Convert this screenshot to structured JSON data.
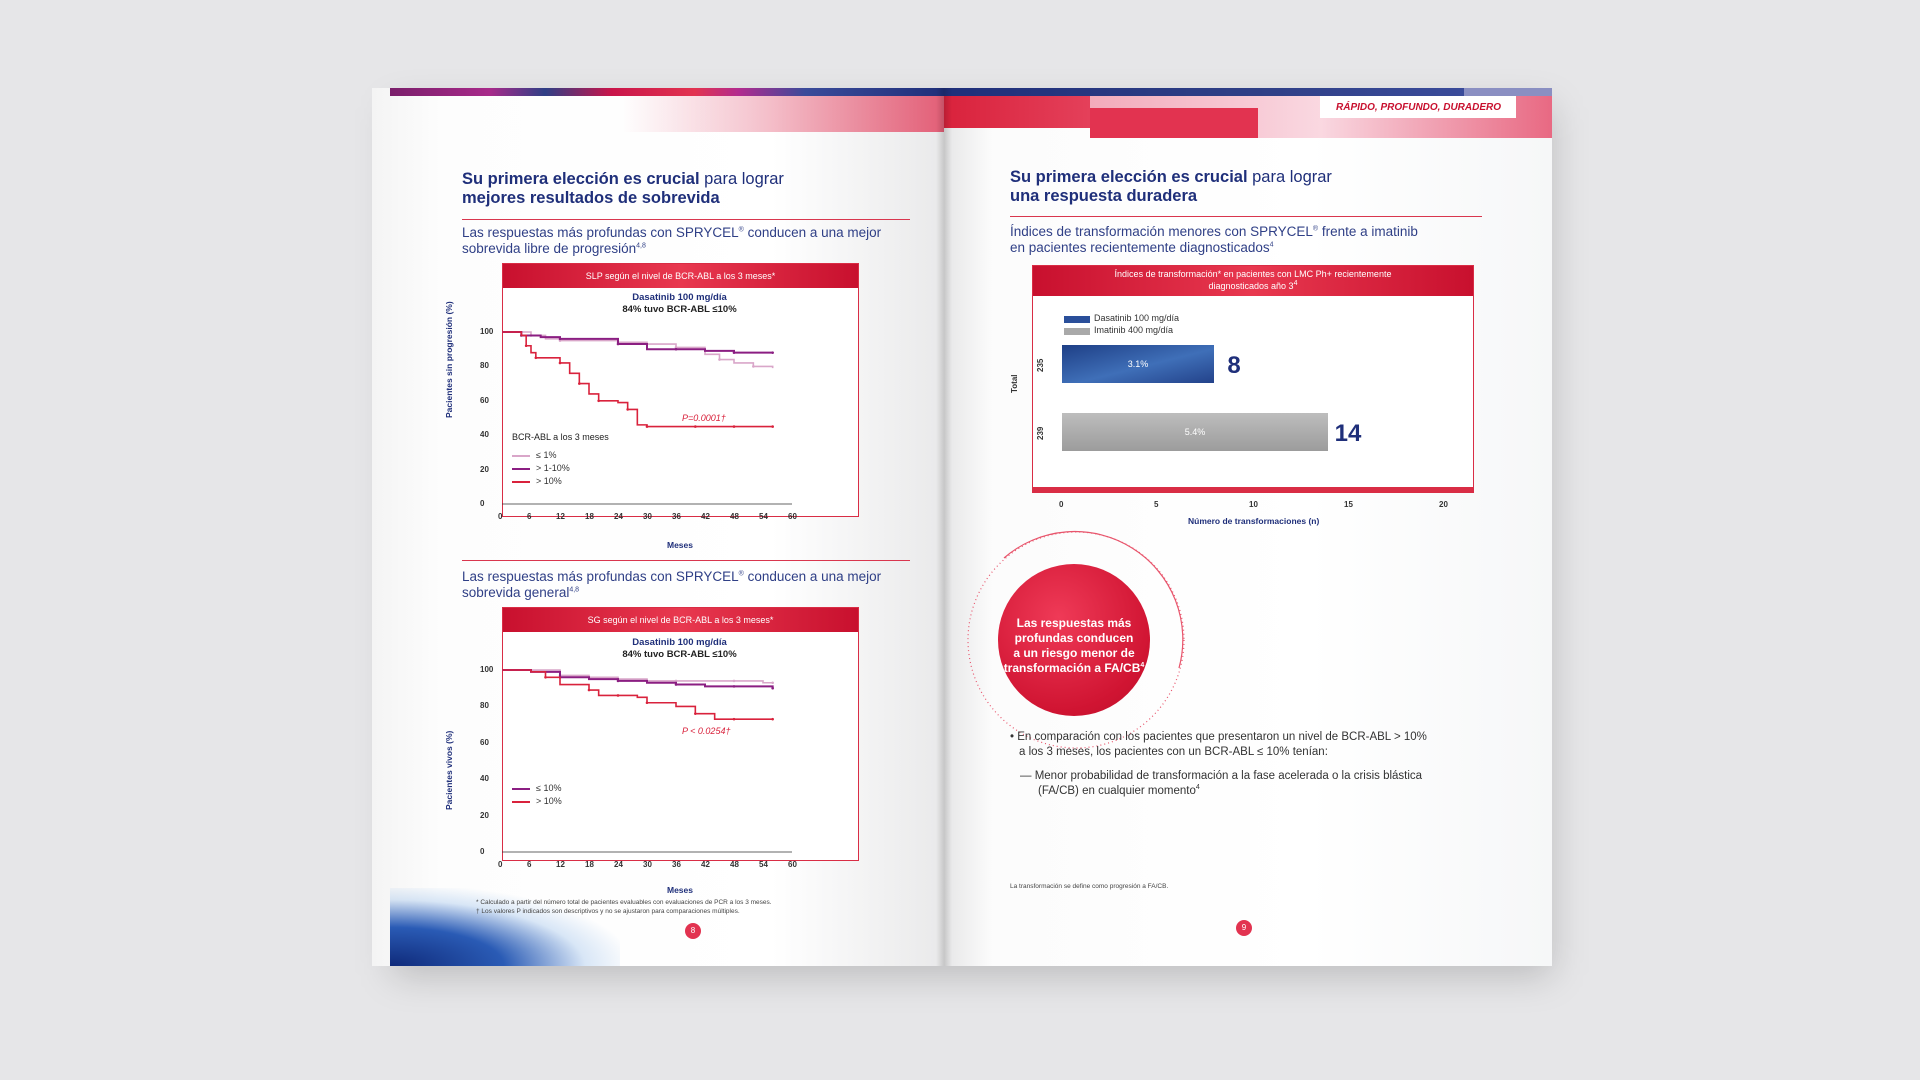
{
  "header_tag": "RÁPIDO, PROFUNDO, DURADERO",
  "left": {
    "title_bold": "Su primera elección es crucial",
    "title_light": " para lograr",
    "title_line2": "mejores resultados de sobrevida",
    "sub1_line1": "Las respuestas más profundas con SPRYCEL",
    "sub1_reg": "®",
    "sub1_tail": " conducen a una mejor",
    "sub1_line2": "sobrevida libre de progresión",
    "sub1_sup": "4,8",
    "sub2_line1": "Las respuestas más profundas con SPRYCEL",
    "sub2_reg": "®",
    "sub2_tail": " conducen a una mejor",
    "sub2_line2": "sobrevida general",
    "sub2_sup": "4,8",
    "footnote1": "* Calculado a partir del número total de pacientes evaluables con evaluaciones de PCR a los 3 meses.",
    "footnote2": "† Los valores P indicados son descriptivos y no se ajustaron para comparaciones múltiples.",
    "page_number": "8"
  },
  "right": {
    "title_bold": "Su primera elección es crucial",
    "title_light": " para lograr",
    "title_line2": "una respuesta duradera",
    "sub_line1": "Índices de transformación menores con SPRYCEL",
    "sub_reg": "®",
    "sub_tail": " frente a imatinib",
    "sub_line2": "en pacientes recientemente diagnosticados",
    "sub_sup": "4",
    "circle_text_1": "Las respuestas más",
    "circle_text_2": "profundas conducen",
    "circle_text_3": "a un riesgo menor de",
    "circle_text_4": "transformación a FA/CB",
    "circle_sup": "4",
    "bullet_1": "• En comparación con los pacientes que presentaron un nivel de BCR-ABL > 10%",
    "bullet_1b": "a los 3 meses, los pacientes con un BCR-ABL ≤ 10% tenían:",
    "dash_1": "— Menor probabilidad de transformación a la fase acelerada o la crisis blástica",
    "dash_1b": "(FA/CB) en cualquier momento",
    "dash_sup": "4",
    "footnote": "La transformación se define como progresión a FA/CB.",
    "page_number": "9"
  },
  "colors": {
    "brand_red": "#d92d45",
    "navy": "#1f2f7a",
    "purple": "#8b1e82",
    "pink_light": "#d9a6c9",
    "dasatinib_blue": "#2a4f9a",
    "imatinib_gray": "#a9a9a9"
  },
  "chart_data": [
    {
      "type": "line",
      "title": "SLP según el nivel de BCR-ABL a los 3 meses*",
      "annotation_1": "Dasatinib 100 mg/día",
      "annotation_2": "84% tuvo BCR-ABL ≤10%",
      "xlabel": "Meses",
      "ylabel": "Pacientes sin progresión (%)",
      "x_ticks": [
        "0",
        "6",
        "12",
        "18",
        "24",
        "30",
        "36",
        "42",
        "48",
        "54",
        "60"
      ],
      "y_ticks": [
        "0",
        "20",
        "40",
        "60",
        "80",
        "100"
      ],
      "xlim": [
        0,
        60
      ],
      "ylim": [
        0,
        100
      ],
      "legend_title": "BCR-ABL a los 3 meses",
      "p_value": "P=0.0001†",
      "series": [
        {
          "name": "≤ 1%",
          "color": "#d9a6c9",
          "x": [
            0,
            3,
            6,
            9,
            12,
            18,
            24,
            30,
            36,
            42,
            45,
            48,
            52,
            56
          ],
          "y": [
            100,
            100,
            98,
            96,
            95,
            95,
            94,
            93,
            91,
            87,
            84,
            82,
            80,
            79
          ]
        },
        {
          "name": "> 1-10%",
          "color": "#8b1e82",
          "x": [
            0,
            2,
            4,
            8,
            12,
            18,
            24,
            30,
            36,
            42,
            48,
            54,
            56
          ],
          "y": [
            100,
            100,
            98,
            97,
            96,
            96,
            93,
            90,
            90,
            89,
            88,
            88,
            88
          ]
        },
        {
          "name": "> 10%",
          "color": "#d9223c",
          "x": [
            0,
            4,
            5,
            6,
            7,
            9,
            12,
            14,
            16,
            18,
            20,
            24,
            26,
            28,
            30,
            36,
            40,
            44,
            48,
            52,
            56
          ],
          "y": [
            100,
            98,
            92,
            88,
            85,
            85,
            82,
            76,
            70,
            64,
            60,
            59,
            55,
            46,
            45,
            45,
            45,
            45,
            45,
            45,
            45
          ]
        }
      ]
    },
    {
      "type": "line",
      "title": "SG según el nivel de BCR-ABL a los 3 meses*",
      "annotation_1": "Dasatinib 100 mg/día",
      "annotation_2": "84% tuvo BCR-ABL ≤10%",
      "xlabel": "Meses",
      "ylabel": "Pacientes vivos (%)",
      "x_ticks": [
        "0",
        "6",
        "12",
        "18",
        "24",
        "30",
        "36",
        "42",
        "48",
        "54",
        "60"
      ],
      "y_ticks": [
        "0",
        "20",
        "40",
        "60",
        "80",
        "100"
      ],
      "xlim": [
        0,
        60
      ],
      "ylim": [
        0,
        100
      ],
      "p_value": "P < 0.0254†",
      "series": [
        {
          "name": "",
          "color": "#d9a6c9",
          "x": [
            0,
            6,
            12,
            18,
            24,
            30,
            36,
            42,
            48,
            54,
            56
          ],
          "y": [
            100,
            100,
            97,
            96,
            95,
            94,
            94,
            94,
            94,
            93,
            93
          ]
        },
        {
          "name": "≤ 10%",
          "color": "#8b1e82",
          "x": [
            0,
            6,
            12,
            18,
            24,
            30,
            36,
            42,
            48,
            54,
            56
          ],
          "y": [
            100,
            99,
            96,
            95,
            94,
            93,
            92,
            91,
            91,
            91,
            90
          ]
        },
        {
          "name": "> 10%",
          "color": "#d9223c",
          "x": [
            0,
            6,
            9,
            12,
            18,
            20,
            24,
            28,
            30,
            36,
            40,
            44,
            48,
            52,
            56
          ],
          "y": [
            100,
            99,
            96,
            92,
            89,
            86,
            86,
            85,
            82,
            80,
            76,
            73,
            73,
            73,
            73
          ]
        }
      ]
    },
    {
      "type": "bar",
      "orientation": "horizontal",
      "title_line1": "Índices de transformación* en pacientes con LMC Ph+ recientemente",
      "title_line2": "diagnosticados año 3",
      "title_sup": "4",
      "xlabel": "Número de transformaciones (n)",
      "ylabel": "Total",
      "xlim": [
        0,
        20
      ],
      "x_ticks": [
        "0",
        "5",
        "10",
        "15",
        "20"
      ],
      "categories": [
        "235",
        "239"
      ],
      "series": [
        {
          "name": "Dasatinib 100 mg/día",
          "color": "#2a4f9a",
          "value": 8,
          "percent_label": "3.1%",
          "value_label": "8"
        },
        {
          "name": "Imatinib 400 mg/día",
          "color": "#a9a9a9",
          "value": 14,
          "percent_label": "5.4%",
          "value_label": "14"
        }
      ]
    }
  ]
}
